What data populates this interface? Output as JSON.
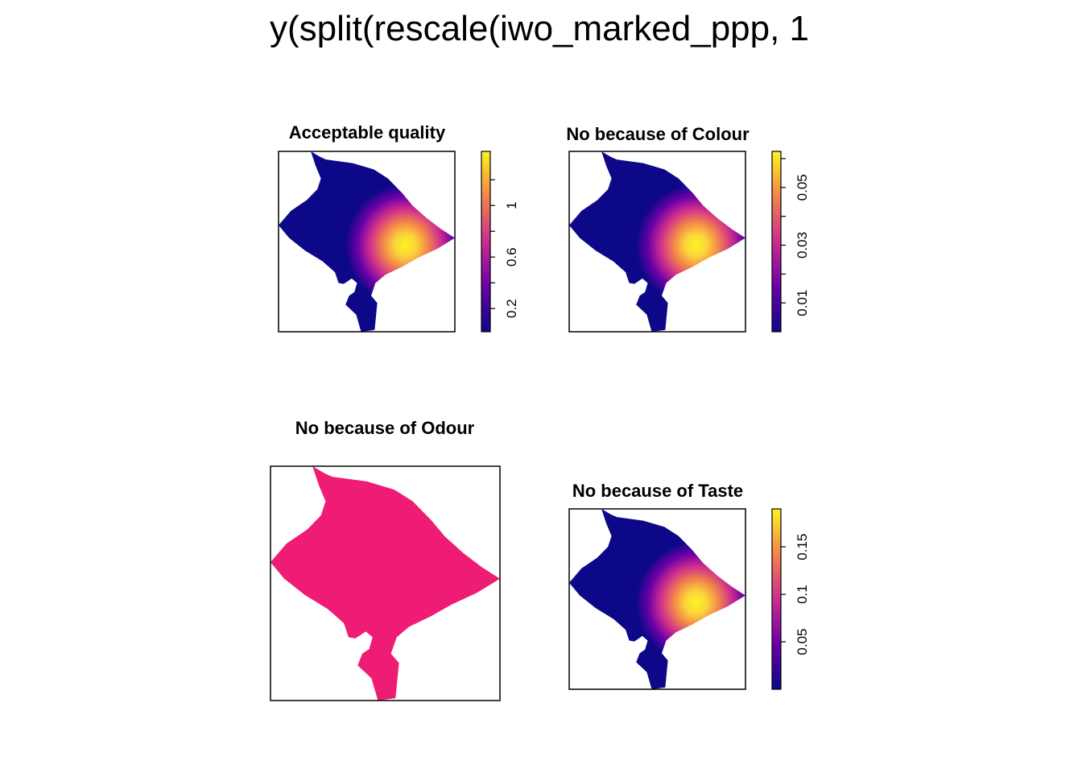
{
  "figure": {
    "title": "y(split(rescale(iwo_marked_ppp, 1"
  },
  "chart_data": [
    {
      "type": "heatmap",
      "title": "Acceptable quality",
      "range": [
        0.02,
        1.42
      ],
      "ticks": [
        0.2,
        0.6,
        1.0
      ],
      "tick_labels": [
        "0.2",
        "0.6",
        "1"
      ],
      "minor_ticks": [
        0.4,
        0.8,
        1.2
      ],
      "uniform": false
    },
    {
      "type": "heatmap",
      "title": "No because of Colour",
      "range": [
        0.0,
        0.0625
      ],
      "ticks": [
        0.01,
        0.03,
        0.05
      ],
      "tick_labels": [
        "0.01",
        "0.03",
        "0.05"
      ],
      "minor_ticks": [
        0.02,
        0.04,
        0.06
      ],
      "uniform": false
    },
    {
      "type": "heatmap",
      "title": "No because of Odour",
      "uniform": true,
      "fill_color": "#EE1C74"
    },
    {
      "type": "heatmap",
      "title": "No because of Taste",
      "range": [
        0.0,
        0.19
      ],
      "ticks": [
        0.05,
        0.1,
        0.15
      ],
      "tick_labels": [
        "0.05",
        "0.1",
        "0.15"
      ],
      "minor_ticks": [],
      "uniform": false
    }
  ],
  "colors": {
    "low": "#0D0887",
    "mid": "#CC2C8F",
    "high": "#FCF221"
  }
}
